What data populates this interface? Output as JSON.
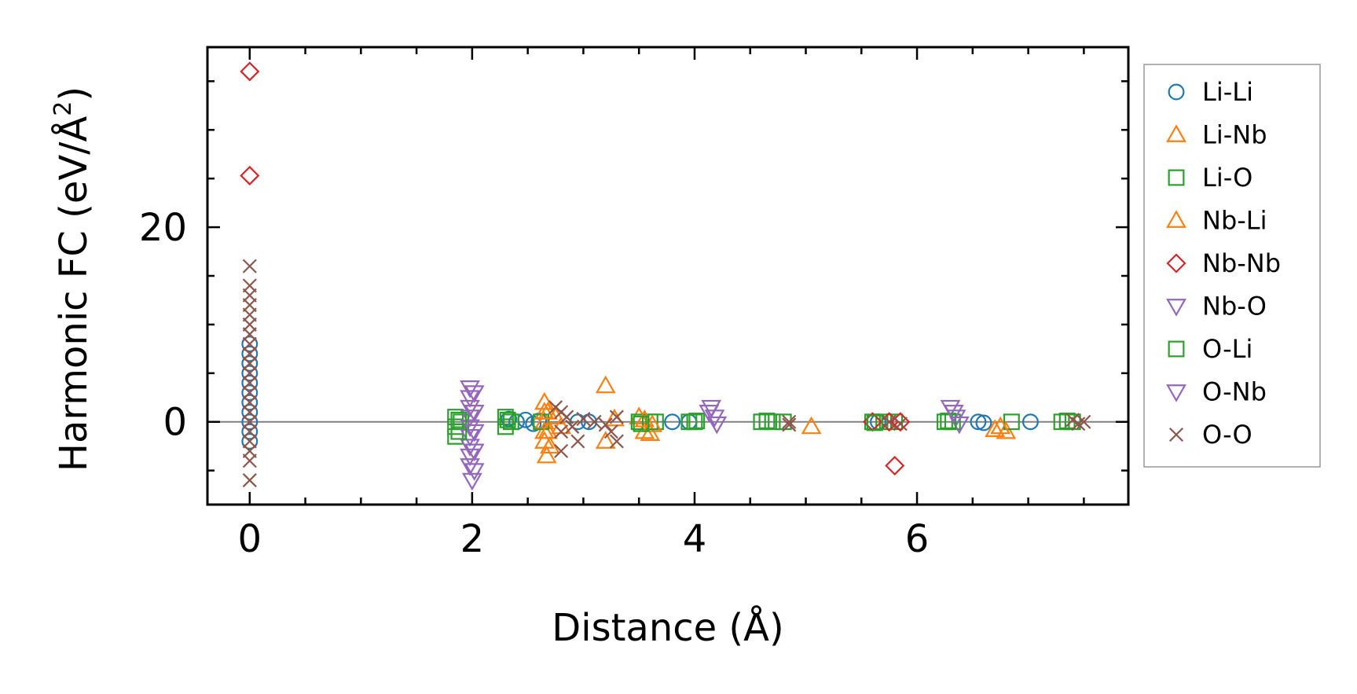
{
  "chart_data": {
    "type": "scatter",
    "title": "",
    "xlabel": "Distance (Å)",
    "ylabel_main": "Harmonic FC (eV/Å",
    "ylabel_sup": "2",
    "ylabel_close": ")",
    "xlim": [
      -0.38,
      7.9
    ],
    "ylim": [
      -8.5,
      38.5
    ],
    "xticks": [
      0,
      2,
      4,
      6
    ],
    "xtick_labels": [
      "0",
      "2",
      "4",
      "6"
    ],
    "xminor_step": 0.5,
    "yticks": [
      0,
      20
    ],
    "ytick_labels": [
      "0",
      "20"
    ],
    "yminor_step": 5,
    "zero_line": true,
    "legend_position": "outside-right",
    "series": [
      {
        "name": "Li-Li",
        "color": "#1f77b4",
        "marker": "circle",
        "points": [
          [
            0,
            8
          ],
          [
            0,
            7
          ],
          [
            0,
            6
          ],
          [
            0,
            5
          ],
          [
            0,
            4
          ],
          [
            0,
            3
          ],
          [
            0,
            2
          ],
          [
            0,
            1
          ],
          [
            0,
            0
          ],
          [
            0,
            -1
          ],
          [
            0,
            -2
          ],
          [
            2.33,
            0.3
          ],
          [
            2.4,
            0
          ],
          [
            2.48,
            0.2
          ],
          [
            2.55,
            -0.2
          ],
          [
            2.6,
            0.1
          ],
          [
            2.95,
            0
          ],
          [
            3.05,
            0
          ],
          [
            3.8,
            0
          ],
          [
            3.95,
            0
          ],
          [
            5.65,
            0
          ],
          [
            6.55,
            0
          ],
          [
            6.6,
            -0.1
          ],
          [
            7.02,
            0
          ]
        ]
      },
      {
        "name": "Li-Nb",
        "color": "#ff7f0e",
        "marker": "triangle-up",
        "points": [
          [
            2.65,
            2
          ],
          [
            2.65,
            1
          ],
          [
            2.65,
            0
          ],
          [
            2.65,
            -1
          ],
          [
            2.65,
            -2
          ],
          [
            2.67,
            -3.5
          ],
          [
            2.75,
            0.5
          ],
          [
            2.8,
            -0.5
          ],
          [
            3.2,
            3.7
          ],
          [
            3.2,
            -2
          ],
          [
            3.28,
            0.3
          ],
          [
            3.5,
            0.5
          ],
          [
            3.55,
            -1
          ],
          [
            3.6,
            -1.2
          ],
          [
            5.05,
            -0.5
          ],
          [
            6.7,
            -0.8
          ],
          [
            6.8,
            -1
          ]
        ]
      },
      {
        "name": "Li-O",
        "color": "#2ca02c",
        "marker": "square",
        "points": [
          [
            1.85,
            0.5
          ],
          [
            1.85,
            -0.5
          ],
          [
            1.85,
            -1.5
          ],
          [
            1.9,
            0
          ],
          [
            2.3,
            0.5
          ],
          [
            2.3,
            -0.5
          ],
          [
            2.35,
            0
          ],
          [
            2.62,
            0
          ],
          [
            3.5,
            0
          ],
          [
            3.6,
            0
          ],
          [
            3.65,
            0
          ],
          [
            3.95,
            0
          ],
          [
            4.0,
            0
          ],
          [
            4.6,
            0
          ],
          [
            4.7,
            0
          ],
          [
            4.8,
            0
          ],
          [
            5.6,
            0
          ],
          [
            5.7,
            0
          ],
          [
            5.8,
            0
          ],
          [
            6.25,
            0
          ],
          [
            6.32,
            0
          ],
          [
            6.85,
            0
          ],
          [
            7.3,
            0
          ],
          [
            7.4,
            0
          ]
        ]
      },
      {
        "name": "Nb-Li",
        "color": "#ff7f0e",
        "marker": "triangle-up",
        "points": [
          [
            2.68,
            1
          ],
          [
            2.68,
            -1
          ],
          [
            2.7,
            -2.5
          ],
          [
            3.55,
            0.2
          ],
          [
            3.62,
            -0.3
          ],
          [
            6.75,
            -0.5
          ]
        ]
      },
      {
        "name": "Nb-Nb",
        "color": "#d62728",
        "marker": "diamond",
        "points": [
          [
            0,
            36
          ],
          [
            0,
            25.3
          ],
          [
            5.8,
            -4.5
          ],
          [
            5.6,
            0
          ],
          [
            5.75,
            0
          ],
          [
            5.85,
            0
          ]
        ]
      },
      {
        "name": "Nb-O",
        "color": "#9467bd",
        "marker": "triangle-down",
        "points": [
          [
            1.98,
            3.5
          ],
          [
            1.98,
            2.5
          ],
          [
            1.98,
            1.5
          ],
          [
            1.98,
            0.5
          ],
          [
            1.98,
            -0.5
          ],
          [
            1.98,
            -1.5
          ],
          [
            1.98,
            -2.5
          ],
          [
            1.98,
            -3.5
          ],
          [
            1.98,
            -4.5
          ],
          [
            2.0,
            -6
          ],
          [
            4.15,
            1.5
          ],
          [
            4.18,
            0.5
          ],
          [
            4.2,
            -0.2
          ],
          [
            6.3,
            1.5
          ],
          [
            6.35,
            0.5
          ],
          [
            6.38,
            -0.2
          ]
        ]
      },
      {
        "name": "O-Li",
        "color": "#2ca02c",
        "marker": "square",
        "points": [
          [
            1.88,
            0.2
          ],
          [
            1.88,
            -1
          ],
          [
            2.32,
            0.2
          ],
          [
            3.52,
            -0.2
          ],
          [
            4.02,
            0.1
          ],
          [
            4.65,
            0.1
          ],
          [
            5.62,
            -0.1
          ],
          [
            6.28,
            0.1
          ],
          [
            7.35,
            0.1
          ]
        ]
      },
      {
        "name": "O-Nb",
        "color": "#9467bd",
        "marker": "triangle-down",
        "points": [
          [
            2.02,
            3
          ],
          [
            2.02,
            1
          ],
          [
            2.02,
            -1
          ],
          [
            2.02,
            -3
          ],
          [
            2.02,
            -5
          ],
          [
            4.13,
            1
          ],
          [
            6.33,
            1
          ]
        ]
      },
      {
        "name": "O-O",
        "color": "#8c564b",
        "marker": "x",
        "points": [
          [
            0,
            16
          ],
          [
            0,
            14
          ],
          [
            0,
            13
          ],
          [
            0,
            12
          ],
          [
            0,
            11
          ],
          [
            0,
            10
          ],
          [
            0,
            9
          ],
          [
            0,
            8
          ],
          [
            0,
            7
          ],
          [
            0,
            6
          ],
          [
            0,
            5
          ],
          [
            0,
            4
          ],
          [
            0,
            3
          ],
          [
            0,
            2
          ],
          [
            0,
            1
          ],
          [
            0,
            0
          ],
          [
            0,
            -1
          ],
          [
            0,
            -2
          ],
          [
            0,
            -3
          ],
          [
            0,
            -4
          ],
          [
            0,
            -6
          ],
          [
            2.75,
            1.5
          ],
          [
            2.8,
            1
          ],
          [
            2.8,
            -1
          ],
          [
            2.8,
            -3
          ],
          [
            2.85,
            0.5
          ],
          [
            2.9,
            -0.5
          ],
          [
            2.95,
            -2
          ],
          [
            3.0,
            0.3
          ],
          [
            3.1,
            0
          ],
          [
            3.2,
            -0.3
          ],
          [
            3.25,
            -1
          ],
          [
            3.3,
            0.5
          ],
          [
            3.3,
            -2
          ],
          [
            4.85,
            0
          ],
          [
            4.85,
            -0.3
          ],
          [
            5.75,
            0
          ],
          [
            5.85,
            -0.2
          ],
          [
            7.4,
            0.2
          ],
          [
            7.45,
            -0.2
          ],
          [
            7.5,
            0
          ]
        ]
      }
    ]
  }
}
